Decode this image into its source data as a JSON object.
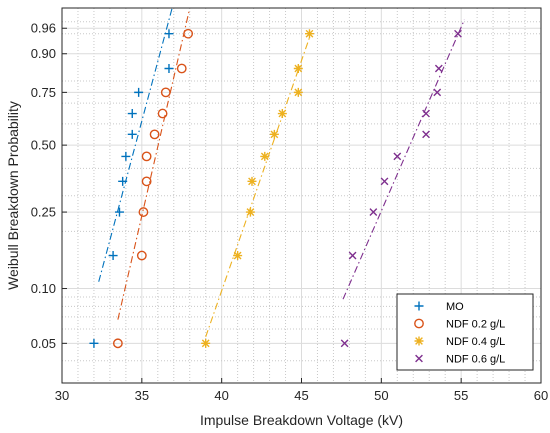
{
  "chart_data": {
    "type": "scatter",
    "title": "",
    "xlabel": "Impulse Breakdown Voltage (kV)",
    "ylabel": "Weibull Breakdown Probability",
    "x_scale": "linear",
    "y_scale": "weibull",
    "xlim": [
      30,
      60
    ],
    "ylim": [
      0.03,
      0.985
    ],
    "xticks": [
      30,
      35,
      40,
      45,
      50,
      55,
      60
    ],
    "yticks": [
      0.05,
      0.1,
      0.25,
      0.5,
      0.75,
      0.9,
      0.96
    ],
    "ytick_labels": [
      "0.05",
      "0.10",
      "0.25",
      "0.50",
      "0.75",
      "0.90",
      "0.96"
    ],
    "grid": true,
    "legend_position": "bottom-right",
    "series": [
      {
        "name": "MO",
        "marker": "plus",
        "color": "#0072BD",
        "points": [
          [
            32.0,
            0.05
          ],
          [
            33.2,
            0.15
          ],
          [
            33.6,
            0.25
          ],
          [
            33.8,
            0.35
          ],
          [
            34.0,
            0.45
          ],
          [
            34.4,
            0.55
          ],
          [
            34.4,
            0.65
          ],
          [
            34.8,
            0.75
          ],
          [
            36.7,
            0.85
          ],
          [
            36.7,
            0.95
          ]
        ],
        "fit_x": [
          32.3,
          36.9
        ]
      },
      {
        "name": "NDF 0.2 g/L",
        "marker": "circle",
        "color": "#D95319",
        "points": [
          [
            33.5,
            0.05
          ],
          [
            35.0,
            0.15
          ],
          [
            35.1,
            0.25
          ],
          [
            35.3,
            0.35
          ],
          [
            35.3,
            0.45
          ],
          [
            35.8,
            0.55
          ],
          [
            36.3,
            0.65
          ],
          [
            36.5,
            0.75
          ],
          [
            37.5,
            0.85
          ],
          [
            37.9,
            0.95
          ]
        ],
        "fit_x": [
          33.5,
          38.1
        ]
      },
      {
        "name": "NDF 0.4 g/L",
        "marker": "asterisk",
        "color": "#EDB120",
        "points": [
          [
            39.0,
            0.05
          ],
          [
            41.0,
            0.15
          ],
          [
            41.8,
            0.25
          ],
          [
            41.9,
            0.35
          ],
          [
            42.7,
            0.45
          ],
          [
            43.3,
            0.55
          ],
          [
            43.8,
            0.65
          ],
          [
            44.8,
            0.75
          ],
          [
            44.8,
            0.85
          ],
          [
            45.5,
            0.95
          ]
        ],
        "fit_x": [
          39.0,
          45.6
        ]
      },
      {
        "name": "NDF 0.6 g/L",
        "marker": "x",
        "color": "#7E2F8E",
        "points": [
          [
            47.7,
            0.05
          ],
          [
            48.2,
            0.15
          ],
          [
            49.5,
            0.25
          ],
          [
            50.2,
            0.35
          ],
          [
            51.0,
            0.45
          ],
          [
            52.8,
            0.55
          ],
          [
            52.8,
            0.65
          ],
          [
            53.5,
            0.75
          ],
          [
            53.6,
            0.85
          ],
          [
            54.8,
            0.95
          ]
        ],
        "fit_x": [
          47.6,
          55.2
        ]
      }
    ]
  }
}
